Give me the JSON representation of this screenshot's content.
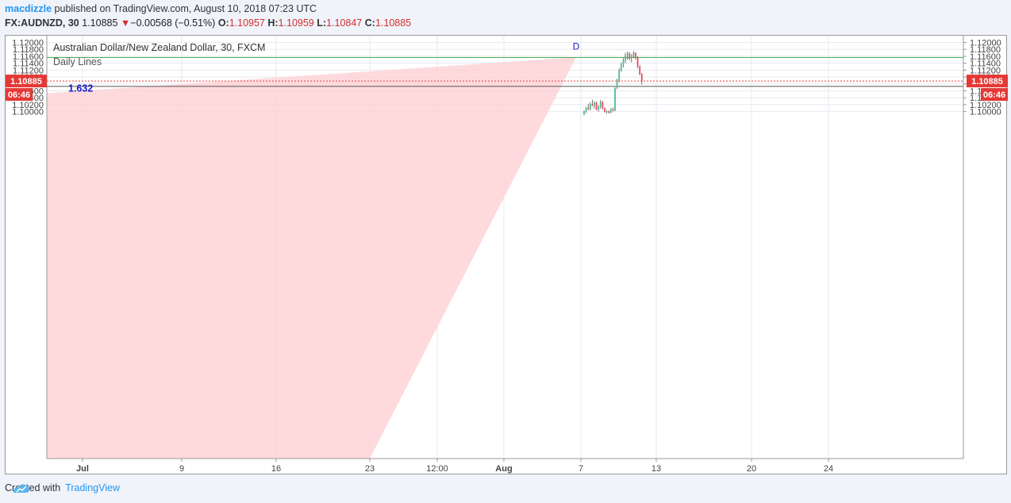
{
  "header": {
    "author": "macdizzle",
    "published": "published on TradingView.com, August 10, 2018 07:23 UTC",
    "symbol": "FX:AUDNZD, 30",
    "last": "1.10885",
    "change_arrow": "▼",
    "change": "−0.00568 (−0.51%)",
    "o_label": "O:",
    "o": "1.10957",
    "h_label": "H:",
    "h": "1.10959",
    "l_label": "L:",
    "l": "1.10847",
    "c_label": "C:",
    "c": "1.10885"
  },
  "legend": {
    "title": "Australian Dollar/New Zealand Dollar, 30, FXCM",
    "study": "Daily Lines"
  },
  "chart_data": {
    "type": "candlestick",
    "ylim": [
      0.99954,
      1.12196
    ],
    "y_ticks": [
      1.1,
      1.102,
      1.104,
      1.106,
      1.108,
      1.11,
      1.112,
      1.114,
      1.116,
      1.118,
      1.12
    ],
    "y_tick_labels": [
      "1.10000",
      "1.10200",
      "1.10400",
      "1.10600",
      "1.10800",
      "1.11000",
      "1.11200",
      "1.11400",
      "1.11600",
      "1.11800",
      "1.12000"
    ],
    "x_ticks": [
      {
        "label": "Jul",
        "bold": true
      },
      {
        "label": "9",
        "bold": false
      },
      {
        "label": "16",
        "bold": false
      },
      {
        "label": "23",
        "bold": false
      },
      {
        "label": "12:00",
        "bold": false
      },
      {
        "label": "Aug",
        "bold": true
      },
      {
        "label": "7",
        "bold": false
      },
      {
        "label": "13",
        "bold": false
      },
      {
        "label": "20",
        "bold": false
      },
      {
        "label": "24",
        "bold": false
      }
    ],
    "horizontal_lines": [
      {
        "price": 1.11564,
        "color": "#4caf50"
      },
      {
        "price": 1.10728,
        "color": "#555555"
      }
    ],
    "last_price": {
      "value": 1.10885,
      "label": "1.10885",
      "countdown": "06:46",
      "color": "#e53935"
    },
    "pattern": {
      "fill": "#ffcdd2",
      "point_d_label": "D",
      "ratio_label": "1.632",
      "apex_price": 1.1157
    },
    "candles": [
      {
        "o": 1.0992,
        "h": 1.1003,
        "l": 1.0989,
        "c": 1.1001
      },
      {
        "o": 1.1001,
        "h": 1.1014,
        "l": 1.0996,
        "c": 1.1011
      },
      {
        "o": 1.1011,
        "h": 1.1022,
        "l": 1.1004,
        "c": 1.1007
      },
      {
        "o": 1.1007,
        "h": 1.1027,
        "l": 1.1003,
        "c": 1.1022
      },
      {
        "o": 1.1022,
        "h": 1.1034,
        "l": 1.1015,
        "c": 1.1018
      },
      {
        "o": 1.1018,
        "h": 1.103,
        "l": 1.1008,
        "c": 1.1026
      },
      {
        "o": 1.1026,
        "h": 1.1029,
        "l": 1.1003,
        "c": 1.1006
      },
      {
        "o": 1.1006,
        "h": 1.1018,
        "l": 1.1,
        "c": 1.1014
      },
      {
        "o": 1.1014,
        "h": 1.1034,
        "l": 1.1008,
        "c": 1.1028
      },
      {
        "o": 1.1028,
        "h": 1.1031,
        "l": 1.1006,
        "c": 1.101
      },
      {
        "o": 1.101,
        "h": 1.1012,
        "l": 1.0997,
        "c": 1.0999
      },
      {
        "o": 1.0999,
        "h": 1.1004,
        "l": 1.0994,
        "c": 1.1001
      },
      {
        "o": 1.1001,
        "h": 1.1003,
        "l": 1.0994,
        "c": 1.0997
      },
      {
        "o": 1.0997,
        "h": 1.101,
        "l": 1.0995,
        "c": 1.1007
      },
      {
        "o": 1.1007,
        "h": 1.1012,
        "l": 1.1,
        "c": 1.1003
      },
      {
        "o": 1.1003,
        "h": 1.107,
        "l": 1.1001,
        "c": 1.1068
      },
      {
        "o": 1.1068,
        "h": 1.1095,
        "l": 1.1065,
        "c": 1.109
      },
      {
        "o": 1.109,
        "h": 1.1125,
        "l": 1.1085,
        "c": 1.112
      },
      {
        "o": 1.112,
        "h": 1.1142,
        "l": 1.1115,
        "c": 1.1138
      },
      {
        "o": 1.1138,
        "h": 1.1155,
        "l": 1.1128,
        "c": 1.1148
      },
      {
        "o": 1.1148,
        "h": 1.117,
        "l": 1.114,
        "c": 1.1162
      },
      {
        "o": 1.1162,
        "h": 1.1174,
        "l": 1.115,
        "c": 1.1168
      },
      {
        "o": 1.1168,
        "h": 1.1172,
        "l": 1.1148,
        "c": 1.1153
      },
      {
        "o": 1.1153,
        "h": 1.1167,
        "l": 1.1142,
        "c": 1.116
      },
      {
        "o": 1.116,
        "h": 1.1175,
        "l": 1.1155,
        "c": 1.117
      },
      {
        "o": 1.117,
        "h": 1.1172,
        "l": 1.115,
        "c": 1.1155
      },
      {
        "o": 1.1155,
        "h": 1.116,
        "l": 1.1125,
        "c": 1.113
      },
      {
        "o": 1.113,
        "h": 1.1135,
        "l": 1.1105,
        "c": 1.1108
      },
      {
        "o": 1.1108,
        "h": 1.1112,
        "l": 1.1078,
        "c": 1.1088
      }
    ]
  },
  "footer": {
    "created": "Created with",
    "brand": "TradingView"
  }
}
